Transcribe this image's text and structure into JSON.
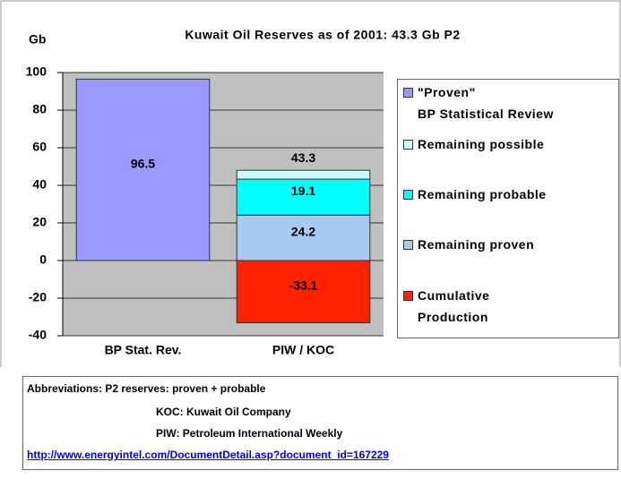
{
  "chart_data": {
    "type": "stacked_bar",
    "title": "Kuwait Oil Reserves as of 2001:   43.3 Gb P2",
    "y_label": "Gb",
    "categories": [
      "BP Stat. Rev.",
      "PIW / KOC"
    ],
    "series": [
      {
        "name": "\"Proven\"\nBP Statistical Review",
        "color": "#9999ff",
        "values": [
          96.5,
          null
        ]
      },
      {
        "name": "Remaining possible",
        "color": "#ccffff",
        "values": [
          null,
          4.7
        ]
      },
      {
        "name": "Remaining probable",
        "color": "#00ffff",
        "values": [
          null,
          19.1
        ]
      },
      {
        "name": "Remaining proven",
        "color": "#a6caf0",
        "values": [
          null,
          24.2
        ]
      },
      {
        "name": "Cumulative\nProduction",
        "color": "#ff2200",
        "values": [
          null,
          -33.1
        ]
      }
    ],
    "labeled_series": [
      0,
      2,
      3,
      4
    ],
    "annotations": [
      {
        "text": "43.3",
        "category": 1
      }
    ],
    "ylim": [
      -40,
      100
    ],
    "yticks": [
      -40,
      -20,
      0,
      20,
      40,
      60,
      80,
      100
    ],
    "grid": true,
    "plot_background": "#c0c0c0",
    "legend": "right",
    "notes": [
      "Abbreviations:  P2 reserves: proven + probable",
      "KOC: Kuwait Oil Company",
      "PIW: Petroleum International Weekly"
    ],
    "source": "http://www.energyintel.com/DocumentDetail.asp?document_id=167229"
  }
}
